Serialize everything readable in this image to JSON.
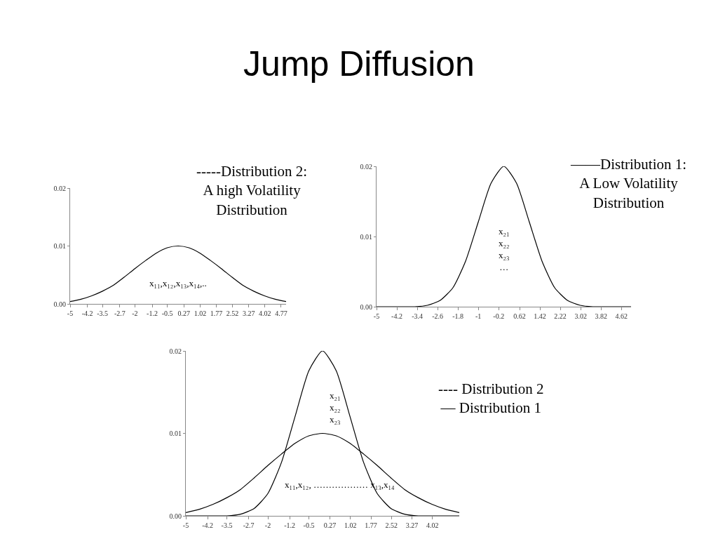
{
  "chart_data": [
    {
      "type": "line",
      "title": "Jump Diffusion",
      "annotations": [
        "x₁₁,x₁₂,x₁₃,x₁₄,..",
        "-----Distribution 2:\nA high Volatility\nDistribution"
      ],
      "x": [
        -5,
        -4.5,
        -4,
        -3.5,
        -3,
        -2.5,
        -2,
        -1.5,
        -1,
        -0.5,
        0,
        0.5,
        1,
        1.5,
        2,
        2.5,
        3,
        3.5,
        4,
        4.5,
        5
      ],
      "series": [
        {
          "color": "#000000",
          "values": [
            0.0004,
            0.0008,
            0.0014,
            0.0022,
            0.0032,
            0.0046,
            0.0061,
            0.0075,
            0.0088,
            0.0097,
            0.01,
            0.0097,
            0.0088,
            0.0075,
            0.0061,
            0.0046,
            0.0032,
            0.0022,
            0.0014,
            0.0008,
            0.0004
          ]
        }
      ],
      "xlim": [
        -5,
        5
      ],
      "ylim": [
        0,
        0.02
      ],
      "xticks": [
        -5,
        -4.2,
        -3.5,
        -2.7,
        -2,
        -1.2,
        -0.5,
        0.27,
        1.02,
        1.77,
        2.52,
        3.27,
        4.02,
        4.77
      ],
      "yticks": [
        {
          "value": 0,
          "label": "0.00"
        },
        {
          "value": 0.01,
          "label": "0.01"
        },
        {
          "value": 0.02,
          "label": "0.02"
        }
      ]
    },
    {
      "type": "line",
      "annotations": [
        "x₂₁\nx₂₂\nx₂₃\n…",
        "——Distribution 1:\nA Low Volatility\nDistribution"
      ],
      "x": [
        -5,
        -4.5,
        -4,
        -3.5,
        -3,
        -2.5,
        -2,
        -1.5,
        -1,
        -0.5,
        0,
        0.5,
        1,
        1.5,
        2,
        2.5,
        3,
        3.5,
        4,
        4.5,
        5
      ],
      "series": [
        {
          "color": "#000000",
          "values": [
            0,
            0,
            0,
            0,
            0.0002,
            0.0009,
            0.0027,
            0.0065,
            0.0121,
            0.0176,
            0.02,
            0.0176,
            0.0121,
            0.0065,
            0.0027,
            0.0009,
            0.0002,
            0,
            0,
            0,
            0
          ]
        }
      ],
      "xlim": [
        -5,
        5
      ],
      "ylim": [
        0,
        0.02
      ],
      "xticks": [
        -5,
        -4.2,
        -3.4,
        -2.6,
        -1.8,
        -1,
        -0.2,
        0.62,
        1.42,
        2.22,
        3.02,
        3.82,
        4.62
      ],
      "yticks": [
        {
          "value": 0,
          "label": "0.00"
        },
        {
          "value": 0.01,
          "label": "0.01"
        },
        {
          "value": 0.02,
          "label": "0.02"
        }
      ]
    },
    {
      "type": "line",
      "annotations": [
        "x₂₁\nx₂₂\nx₂₃",
        "x₁₁,x₁₂, ……………… x₁₃,x₁₄",
        "---- Distribution 2\n— Distribution 1"
      ],
      "x": [
        -5,
        -4.5,
        -4,
        -3.5,
        -3,
        -2.5,
        -2,
        -1.5,
        -1,
        -0.5,
        0,
        0.5,
        1,
        1.5,
        2,
        2.5,
        3,
        3.5,
        4,
        4.5,
        5
      ],
      "series": [
        {
          "color": "#000000",
          "values": [
            0.0004,
            0.0008,
            0.0014,
            0.0022,
            0.0032,
            0.0046,
            0.0061,
            0.0075,
            0.0088,
            0.0097,
            0.01,
            0.0097,
            0.0088,
            0.0075,
            0.0061,
            0.0046,
            0.0032,
            0.0022,
            0.0014,
            0.0008,
            0.0004
          ]
        },
        {
          "color": "#000000",
          "values": [
            0,
            0,
            0,
            0,
            0.0002,
            0.0009,
            0.0027,
            0.0065,
            0.0121,
            0.0176,
            0.02,
            0.0176,
            0.0121,
            0.0065,
            0.0027,
            0.0009,
            0.0002,
            0,
            0,
            0,
            0
          ]
        }
      ],
      "xlim": [
        -5,
        5
      ],
      "ylim": [
        0,
        0.02
      ],
      "xticks": [
        -5,
        -4.2,
        -3.5,
        -2.7,
        -2,
        -1.2,
        -0.5,
        0.27,
        1.02,
        1.77,
        2.52,
        3.27,
        4.02
      ],
      "yticks": [
        {
          "value": 0,
          "label": "0.00"
        },
        {
          "value": 0.01,
          "label": "0.01"
        },
        {
          "value": 0.02,
          "label": "0.02"
        }
      ]
    }
  ]
}
